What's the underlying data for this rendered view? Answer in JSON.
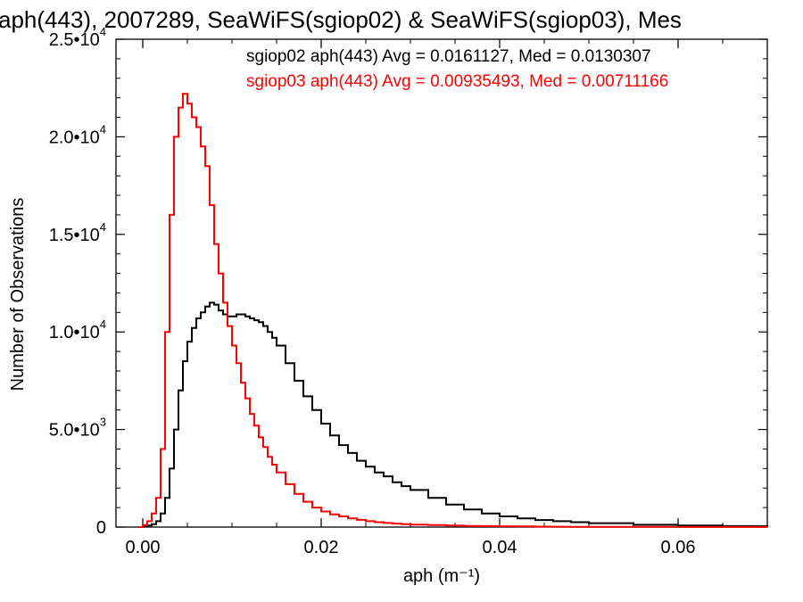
{
  "chart_data": {
    "type": "line",
    "title": "aph(443), 2007289, SeaWiFS(sgiop02) & SeaWiFS(sgiop03), Mes",
    "xlabel": "aph (m⁻¹)",
    "ylabel": "Number of Observations",
    "xlim": [
      -0.003,
      0.07
    ],
    "ylim": [
      0,
      25000
    ],
    "x_ticks": [
      0.0,
      0.02,
      0.04,
      0.06
    ],
    "x_tick_labels": [
      "0.00",
      "0.02",
      "0.04",
      "0.06"
    ],
    "y_ticks": [
      0,
      5000,
      10000,
      15000,
      20000,
      25000
    ],
    "y_tick_labels": [
      {
        "mantissa": "0",
        "exponent": ""
      },
      {
        "mantissa": "5.0•10",
        "exponent": "3"
      },
      {
        "mantissa": "1.0•10",
        "exponent": "4"
      },
      {
        "mantissa": "1.5•10",
        "exponent": "4"
      },
      {
        "mantissa": "2.0•10",
        "exponent": "4"
      },
      {
        "mantissa": "2.5•10",
        "exponent": "4"
      }
    ],
    "grid": false,
    "series": [
      {
        "name": "sgiop02",
        "color": "#000000",
        "label": "sgiop02 aph(443) Avg = 0.0161127, Med = 0.0130307",
        "x": [
          -0.0005,
          0.0,
          0.0005,
          0.001,
          0.0015,
          0.002,
          0.0025,
          0.003,
          0.0035,
          0.004,
          0.0045,
          0.005,
          0.0055,
          0.006,
          0.0065,
          0.007,
          0.0075,
          0.008,
          0.0085,
          0.009,
          0.0095,
          0.01,
          0.0105,
          0.011,
          0.0115,
          0.012,
          0.0125,
          0.013,
          0.0135,
          0.014,
          0.0145,
          0.015,
          0.016,
          0.017,
          0.018,
          0.019,
          0.02,
          0.021,
          0.022,
          0.023,
          0.024,
          0.025,
          0.026,
          0.027,
          0.028,
          0.029,
          0.03,
          0.032,
          0.034,
          0.036,
          0.038,
          0.04,
          0.042,
          0.044,
          0.046,
          0.048,
          0.05,
          0.055,
          0.06,
          0.065,
          0.07
        ],
        "y": [
          0,
          30,
          80,
          150,
          300,
          700,
          1500,
          3000,
          5000,
          7000,
          8500,
          9500,
          10200,
          10700,
          11000,
          11300,
          11500,
          11400,
          11100,
          10900,
          10800,
          10800,
          10900,
          10900,
          10800,
          10700,
          10600,
          10500,
          10300,
          10000,
          9700,
          9300,
          8400,
          7500,
          6700,
          6000,
          5300,
          4700,
          4200,
          3800,
          3400,
          3100,
          2800,
          2600,
          2300,
          2100,
          1900,
          1500,
          1150,
          900,
          700,
          550,
          450,
          360,
          300,
          250,
          200,
          120,
          80,
          50,
          30
        ]
      },
      {
        "name": "sgiop03",
        "color": "#ff0000",
        "label": "sgiop03 aph(443) Avg = 0.00935493, Med = 0.00711166",
        "x": [
          -0.0005,
          0.0,
          0.0005,
          0.001,
          0.0015,
          0.002,
          0.0025,
          0.003,
          0.0035,
          0.004,
          0.0045,
          0.005,
          0.0055,
          0.006,
          0.0065,
          0.007,
          0.0075,
          0.008,
          0.0085,
          0.009,
          0.0095,
          0.01,
          0.0105,
          0.011,
          0.0115,
          0.012,
          0.0125,
          0.013,
          0.0135,
          0.014,
          0.0145,
          0.015,
          0.016,
          0.017,
          0.018,
          0.019,
          0.02,
          0.021,
          0.022,
          0.023,
          0.024,
          0.025,
          0.026,
          0.027,
          0.028,
          0.029,
          0.03,
          0.032,
          0.034,
          0.036,
          0.038,
          0.04,
          0.042,
          0.044,
          0.046,
          0.048,
          0.05,
          0.055,
          0.06,
          0.065,
          0.07
        ],
        "y": [
          0,
          100,
          300,
          700,
          1500,
          4000,
          10000,
          16000,
          20000,
          21500,
          22200,
          21700,
          21000,
          20500,
          19500,
          18500,
          16500,
          14500,
          13000,
          11500,
          10300,
          9300,
          8400,
          7400,
          6600,
          5800,
          5200,
          4600,
          4100,
          3600,
          3200,
          2800,
          2200,
          1700,
          1300,
          1000,
          800,
          650,
          550,
          450,
          370,
          300,
          250,
          210,
          180,
          150,
          130,
          100,
          80,
          60,
          50,
          40,
          30,
          25,
          20,
          15,
          12,
          8,
          5,
          3,
          2
        ]
      }
    ]
  }
}
